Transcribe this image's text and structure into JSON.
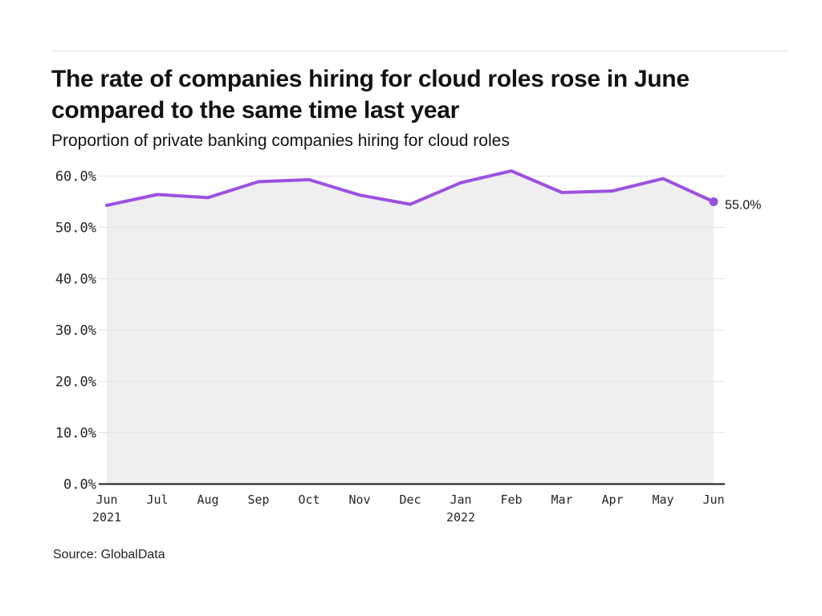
{
  "header": {
    "title_lines": [
      "The rate of companies hiring for cloud roles rose in June",
      "compared to the same time last year"
    ],
    "subtitle": "Proportion of private banking companies hiring for cloud roles"
  },
  "source": {
    "label": "Source: GlobalData"
  },
  "colors": {
    "line": "#9b51e0",
    "area_fill": "#efefef",
    "grid": "#e4e3e5",
    "axis": "#1a1a1a",
    "tick_text": "#262626",
    "label_text": "#121212"
  },
  "chart_data": {
    "type": "area",
    "title": "The rate of companies hiring for cloud roles rose in June compared to the same time last year",
    "subtitle": "Proportion of private banking companies hiring for cloud roles",
    "categories": [
      "Jun",
      "Jul",
      "Aug",
      "Sep",
      "Oct",
      "Nov",
      "Dec",
      "Jan",
      "Feb",
      "Mar",
      "Apr",
      "May",
      "Jun"
    ],
    "year_labels": [
      {
        "index": 0,
        "text": "2021"
      },
      {
        "index": 7,
        "text": "2022"
      }
    ],
    "values": [
      54.3,
      56.4,
      55.8,
      58.9,
      59.3,
      56.3,
      54.5,
      58.7,
      61.0,
      56.8,
      57.1,
      59.5,
      55.0
    ],
    "ylim": [
      0,
      60
    ],
    "ytick_step": 10,
    "ytick_labels": [
      "0.0%",
      "10.0%",
      "20.0%",
      "30.0%",
      "40.0%",
      "50.0%",
      "60.0%"
    ],
    "end_label": "55.0%",
    "grid": true,
    "legend": "none",
    "xlabel": "",
    "ylabel": ""
  }
}
